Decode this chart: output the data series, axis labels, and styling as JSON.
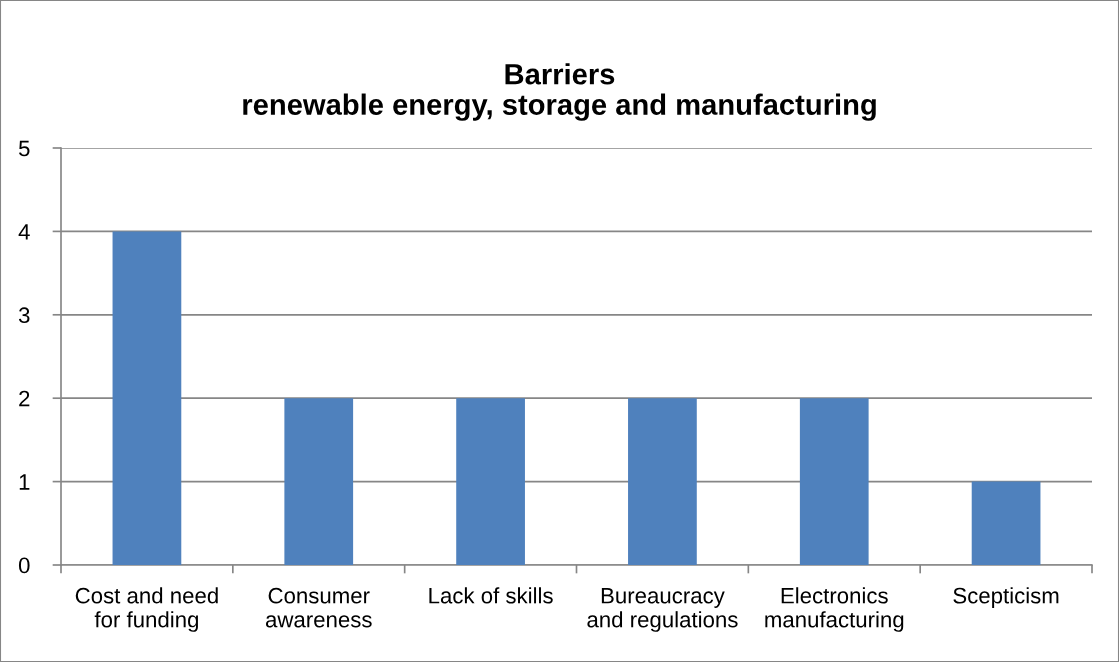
{
  "chart_data": {
    "type": "bar",
    "title": "Barriers\nrenewable energy, storage and manufacturing",
    "categories": [
      "Cost and need\nfor funding",
      "Consumer\nawareness",
      "Lack of skills",
      "Bureaucracy\nand regulations",
      "Electronics\nmanufacturing",
      "Scepticism"
    ],
    "values": [
      4,
      2,
      2,
      2,
      2,
      1
    ],
    "color": "#4f81bd",
    "ylim": [
      0,
      5
    ],
    "yticks": [
      0,
      1,
      2,
      3,
      4,
      5
    ],
    "grid": "y"
  }
}
